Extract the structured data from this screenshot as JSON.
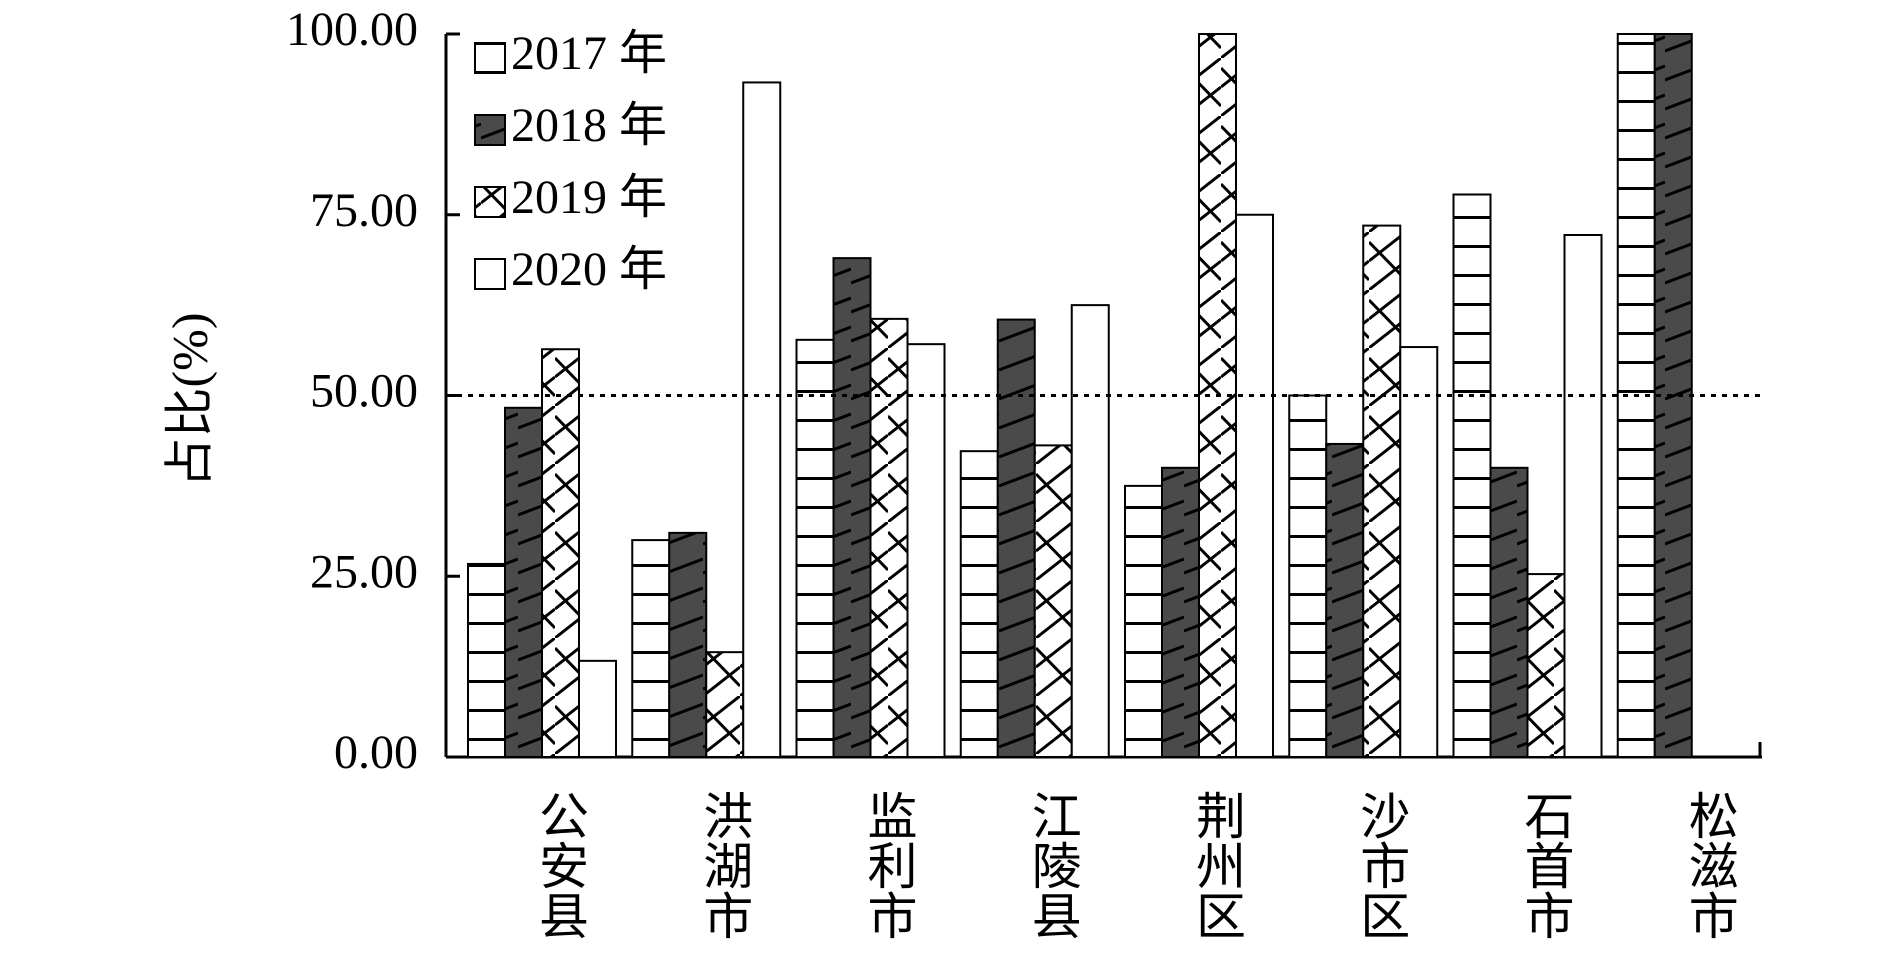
{
  "chart_data": {
    "type": "bar",
    "title": "",
    "xlabel": "",
    "ylabel": "占比(%)",
    "ylim": [
      0,
      100
    ],
    "yticks": [
      "0.00",
      "25.00",
      "50.00",
      "75.00",
      "100.00"
    ],
    "reference_line": {
      "y": 50,
      "style": "dotted"
    },
    "grid": false,
    "legend_position": "top-left",
    "categories": [
      "公安县",
      "洪湖市",
      "监利市",
      "江陵县",
      "荆州区",
      "沙市区",
      "石首市",
      "松滋市"
    ],
    "series": [
      {
        "name": "2017 年",
        "pattern": "horizontal-lines",
        "color": "#ffffff",
        "values": [
          26.7,
          30.0,
          57.7,
          42.3,
          37.5,
          50.0,
          77.8,
          100.0
        ]
      },
      {
        "name": "2018 年",
        "pattern": "solid-dark-diagonal",
        "color": "#4a4a4a",
        "values": [
          48.3,
          31.0,
          69.0,
          60.5,
          40.0,
          43.3,
          40.0,
          100.0
        ]
      },
      {
        "name": "2019 年",
        "pattern": "diagonal-cross",
        "color": "#ffffff",
        "values": [
          56.4,
          14.5,
          60.6,
          43.1,
          100.0,
          73.5,
          25.3,
          0
        ]
      },
      {
        "name": "2020 年",
        "pattern": "none",
        "color": "#ffffff",
        "values": [
          13.3,
          93.3,
          57.1,
          62.5,
          75.0,
          56.7,
          72.2,
          0
        ]
      }
    ]
  }
}
